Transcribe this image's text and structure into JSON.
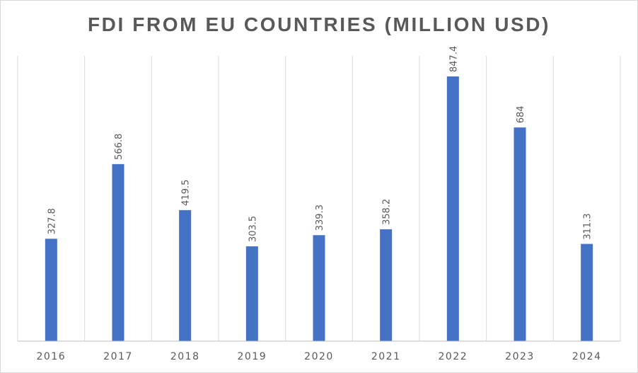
{
  "chart_data": {
    "type": "bar",
    "title": "FDI FROM EU COUNTRIES (MILLION USD)",
    "categories": [
      "2016",
      "2017",
      "2018",
      "2019",
      "2020",
      "2021",
      "2022",
      "2023",
      "2024"
    ],
    "values": [
      327.8,
      566.8,
      419.5,
      303.5,
      339.3,
      358.2,
      847.4,
      684,
      311.3
    ],
    "data_labels": [
      "327.8",
      "566.8",
      "419.5",
      "303.5",
      "339.3",
      "358.2",
      "847.4",
      "684",
      "311.3"
    ],
    "xlabel": "",
    "ylabel": "",
    "ylim": [
      0,
      850
    ],
    "grid": "vertical",
    "legend": "none",
    "colors": {
      "bar": "#4472c4",
      "grid": "#d9d9d9",
      "axis": "#bfbfbf",
      "text": "#595959"
    }
  }
}
